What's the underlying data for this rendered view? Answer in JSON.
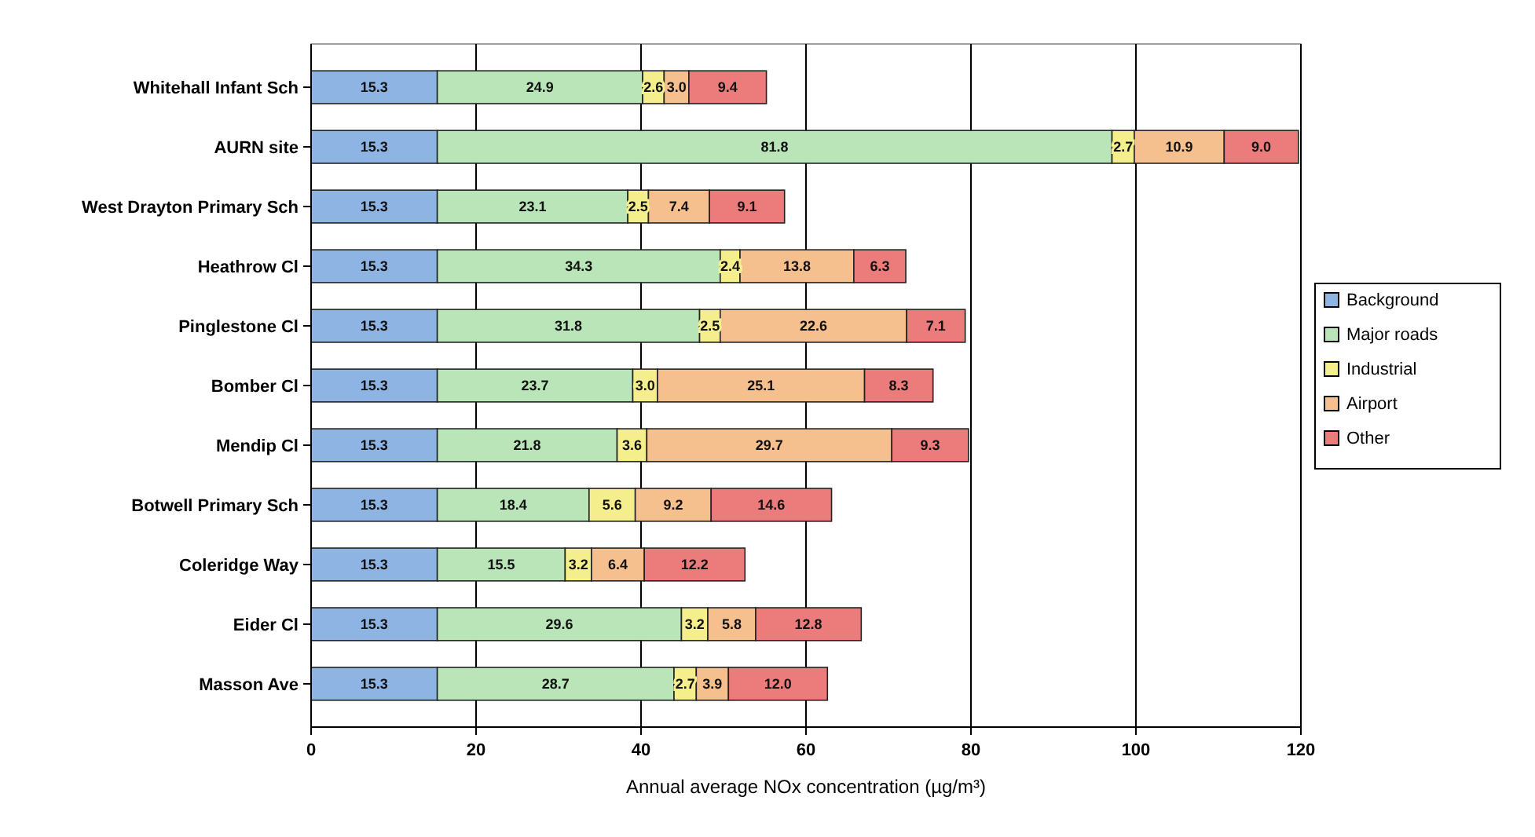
{
  "chart_data": {
    "type": "bar",
    "orientation": "horizontal",
    "stacked": true,
    "xlabel": "Annual average NOx concentration (µg/m³)",
    "categories": [
      "Whitehall Infant Sch",
      "AURN site",
      "West Drayton Primary Sch",
      "Heathrow Cl",
      "Pinglestone Cl",
      "Bomber Cl",
      "Mendip Cl",
      "Botwell Primary Sch",
      "Coleridge Way",
      "Eider Cl",
      "Masson Ave"
    ],
    "series": [
      {
        "name": "Background",
        "color": "#8db4e2",
        "values": [
          15.3,
          15.3,
          15.3,
          15.3,
          15.3,
          15.3,
          15.3,
          15.3,
          15.3,
          15.3,
          15.3
        ],
        "value_labels": [
          "15.3",
          "15.3",
          "15.3",
          "15.3",
          "15.3",
          "15.3",
          "15.3",
          "15.3",
          "15.3",
          "15.3",
          "15.3"
        ]
      },
      {
        "name": "Major roads",
        "color": "#b9e5b9",
        "values": [
          24.9,
          81.8,
          23.1,
          34.3,
          31.8,
          23.7,
          21.8,
          18.4,
          15.5,
          29.6,
          28.7
        ],
        "value_labels": [
          "24.9",
          "81.8",
          "23.1",
          "34.3",
          "31.8",
          "23.7",
          "21.8",
          "18.4",
          "15.5",
          "29.6",
          "28.7"
        ]
      },
      {
        "name": "Industrial",
        "color": "#f4ee8c",
        "values": [
          2.6,
          2.7,
          2.5,
          2.4,
          2.5,
          3.0,
          3.6,
          5.6,
          3.2,
          3.2,
          2.7
        ],
        "value_labels": [
          "2.6",
          "2.7",
          "2.5",
          "2.4",
          "2.5",
          "3.0",
          "3.6",
          "5.6",
          "3.2",
          "3.2",
          "2.7"
        ]
      },
      {
        "name": "Airport",
        "color": "#f6c08e",
        "values": [
          3.0,
          10.9,
          7.4,
          13.8,
          22.6,
          25.1,
          29.7,
          9.2,
          6.4,
          5.8,
          3.9
        ],
        "value_labels": [
          "3.0",
          "10.9",
          "7.4",
          "13.8",
          "22.6",
          "25.1",
          "29.7",
          "9.2",
          "6.4",
          "5.8",
          "3.9"
        ]
      },
      {
        "name": "Other",
        "color": "#ec7c7c",
        "values": [
          9.4,
          9.0,
          9.1,
          6.3,
          7.1,
          8.3,
          9.3,
          14.6,
          12.2,
          12.8,
          12.0
        ],
        "value_labels": [
          "9.4",
          "9.0",
          "9.1",
          "6.3",
          "7.1",
          "8.3",
          "9.3",
          "14.6",
          "12.2",
          "12.8",
          "12.0"
        ]
      }
    ],
    "xlim": [
      0,
      120
    ],
    "xticks": [
      0,
      20,
      40,
      60,
      80,
      100,
      120
    ],
    "grid": "x",
    "legend": "right"
  }
}
